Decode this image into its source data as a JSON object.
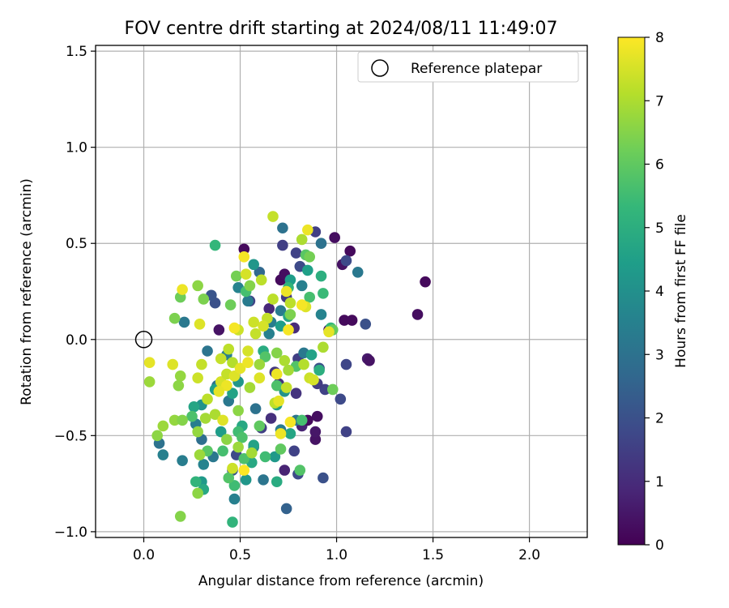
{
  "chart_data": {
    "type": "scatter",
    "title": "FOV centre drift starting at 2024/08/11 11:49:07",
    "xlabel": "Angular distance from reference (arcmin)",
    "ylabel": "Rotation from reference (arcmin)",
    "xlim": [
      -0.25,
      2.3
    ],
    "ylim": [
      -1.03,
      1.53
    ],
    "xticks": [
      0.0,
      0.5,
      1.0,
      1.5,
      2.0
    ],
    "xtick_labels": [
      "0.0",
      "0.5",
      "1.0",
      "1.5",
      "2.0"
    ],
    "yticks": [
      -1.0,
      -0.5,
      0.0,
      0.5,
      1.0,
      1.5
    ],
    "ytick_labels": [
      "−1.0",
      "−0.5",
      "0.0",
      "0.5",
      "1.0",
      "1.5"
    ],
    "grid": true,
    "legend": {
      "position": "top-right",
      "entries": [
        "Reference platepar"
      ]
    },
    "reference_point": {
      "x": 0.0,
      "y": 0.0,
      "label": "Reference platepar",
      "marker": "open-circle"
    },
    "colorbar": {
      "label": "Hours from first FF file",
      "range": [
        0,
        8
      ],
      "ticks": [
        0,
        1,
        2,
        3,
        4,
        5,
        6,
        7,
        8
      ],
      "tick_labels": [
        "0",
        "1",
        "2",
        "3",
        "4",
        "5",
        "6",
        "7",
        "8"
      ],
      "colormap": "viridis",
      "colormap_hex": [
        "#440154",
        "#482878",
        "#3e4989",
        "#31688e",
        "#26828e",
        "#1f9e89",
        "#35b779",
        "#6ece58",
        "#b5de2b",
        "#fde725"
      ]
    },
    "points": [
      {
        "x": 0.99,
        "y": 0.53,
        "h": 0.3
      },
      {
        "x": 1.07,
        "y": 0.46,
        "h": 0.2
      },
      {
        "x": 1.46,
        "y": 0.3,
        "h": 0.2
      },
      {
        "x": 1.42,
        "y": 0.13,
        "h": 0.3
      },
      {
        "x": 1.03,
        "y": 0.39,
        "h": 0.4
      },
      {
        "x": 1.04,
        "y": 0.1,
        "h": 0.2
      },
      {
        "x": 1.08,
        "y": 0.1,
        "h": 0.2
      },
      {
        "x": 0.96,
        "y": 0.05,
        "h": 0.3
      },
      {
        "x": 1.16,
        "y": -0.1,
        "h": 0.6
      },
      {
        "x": 1.17,
        "y": -0.11,
        "h": 0.4
      },
      {
        "x": 0.9,
        "y": -0.4,
        "h": 0.3
      },
      {
        "x": 0.89,
        "y": -0.52,
        "h": 0.4
      },
      {
        "x": 0.89,
        "y": -0.48,
        "h": 0.5
      },
      {
        "x": 0.82,
        "y": -0.45,
        "h": 0.8
      },
      {
        "x": 0.85,
        "y": -0.42,
        "h": 0.2
      },
      {
        "x": 0.73,
        "y": -0.68,
        "h": 0.8
      },
      {
        "x": 0.71,
        "y": 0.31,
        "h": 0.2
      },
      {
        "x": 0.73,
        "y": 0.34,
        "h": 0.3
      },
      {
        "x": 0.52,
        "y": 0.47,
        "h": 0.2
      },
      {
        "x": 0.39,
        "y": 0.05,
        "h": 0.4
      },
      {
        "x": 0.79,
        "y": 0.45,
        "h": 1.6
      },
      {
        "x": 0.72,
        "y": 0.49,
        "h": 1.5
      },
      {
        "x": 1.05,
        "y": 0.41,
        "h": 1.8
      },
      {
        "x": 1.15,
        "y": 0.08,
        "h": 2.0
      },
      {
        "x": 1.05,
        "y": -0.13,
        "h": 1.7
      },
      {
        "x": 1.05,
        "y": -0.48,
        "h": 1.6
      },
      {
        "x": 1.02,
        "y": -0.31,
        "h": 1.8
      },
      {
        "x": 0.94,
        "y": -0.26,
        "h": 1.6
      },
      {
        "x": 0.93,
        "y": -0.72,
        "h": 2.0
      },
      {
        "x": 0.8,
        "y": -0.7,
        "h": 1.8
      },
      {
        "x": 0.78,
        "y": -0.58,
        "h": 1.6
      },
      {
        "x": 0.74,
        "y": -0.88,
        "h": 2.5
      },
      {
        "x": 0.61,
        "y": -0.46,
        "h": 1.5
      },
      {
        "x": 0.46,
        "y": -0.68,
        "h": 2.2
      },
      {
        "x": 0.48,
        "y": -0.6,
        "h": 1.8
      },
      {
        "x": 0.55,
        "y": 0.2,
        "h": 1.6
      },
      {
        "x": 0.37,
        "y": 0.19,
        "h": 2.0
      },
      {
        "x": 0.35,
        "y": 0.23,
        "h": 2.1
      },
      {
        "x": 0.89,
        "y": 0.56,
        "h": 1.5
      },
      {
        "x": 0.81,
        "y": 0.38,
        "h": 1.8
      },
      {
        "x": 0.91,
        "y": -0.15,
        "h": 2.0
      },
      {
        "x": 0.9,
        "y": -0.23,
        "h": 1.4
      },
      {
        "x": 0.79,
        "y": -0.28,
        "h": 1.2
      },
      {
        "x": 0.8,
        "y": -0.1,
        "h": 1.5
      },
      {
        "x": 0.68,
        "y": -0.17,
        "h": 1.3
      },
      {
        "x": 0.66,
        "y": -0.41,
        "h": 1.1
      },
      {
        "x": 0.78,
        "y": 0.06,
        "h": 1.0
      },
      {
        "x": 0.7,
        "y": -0.23,
        "h": 1.2
      },
      {
        "x": 0.65,
        "y": 0.16,
        "h": 0.9
      },
      {
        "x": 0.74,
        "y": 0.22,
        "h": 1.4
      },
      {
        "x": 0.6,
        "y": 0.35,
        "h": 2.7
      },
      {
        "x": 0.92,
        "y": 0.5,
        "h": 3.0
      },
      {
        "x": 1.11,
        "y": 0.35,
        "h": 3.2
      },
      {
        "x": 0.72,
        "y": 0.58,
        "h": 3.0
      },
      {
        "x": 0.82,
        "y": 0.28,
        "h": 3.5
      },
      {
        "x": 0.71,
        "y": 0.15,
        "h": 3.3
      },
      {
        "x": 0.92,
        "y": 0.13,
        "h": 3.6
      },
      {
        "x": 0.66,
        "y": 0.09,
        "h": 3.4
      },
      {
        "x": 0.83,
        "y": -0.07,
        "h": 3.2
      },
      {
        "x": 0.79,
        "y": -0.42,
        "h": 3.1
      },
      {
        "x": 0.71,
        "y": -0.47,
        "h": 3.3
      },
      {
        "x": 0.58,
        "y": -0.36,
        "h": 3.0
      },
      {
        "x": 0.57,
        "y": -0.56,
        "h": 3.4
      },
      {
        "x": 0.62,
        "y": -0.73,
        "h": 3.1
      },
      {
        "x": 0.47,
        "y": -0.83,
        "h": 3.5
      },
      {
        "x": 0.36,
        "y": -0.61,
        "h": 3.2
      },
      {
        "x": 0.31,
        "y": -0.65,
        "h": 3.6
      },
      {
        "x": 0.2,
        "y": -0.63,
        "h": 3.4
      },
      {
        "x": 0.08,
        "y": -0.54,
        "h": 3.0
      },
      {
        "x": 0.1,
        "y": -0.6,
        "h": 3.5
      },
      {
        "x": 0.21,
        "y": 0.09,
        "h": 3.2
      },
      {
        "x": 0.33,
        "y": -0.06,
        "h": 3.1
      },
      {
        "x": 0.43,
        "y": -0.08,
        "h": 3.4
      },
      {
        "x": 0.49,
        "y": 0.27,
        "h": 3.6
      },
      {
        "x": 0.54,
        "y": 0.2,
        "h": 3.3
      },
      {
        "x": 0.38,
        "y": -0.24,
        "h": 3.0
      },
      {
        "x": 0.44,
        "y": -0.32,
        "h": 3.2
      },
      {
        "x": 0.3,
        "y": -0.52,
        "h": 2.9
      },
      {
        "x": 0.27,
        "y": -0.44,
        "h": 3.4
      },
      {
        "x": 0.65,
        "y": 0.03,
        "h": 3.5
      },
      {
        "x": 0.57,
        "y": 0.39,
        "h": 4.2
      },
      {
        "x": 0.85,
        "y": 0.36,
        "h": 4.5
      },
      {
        "x": 0.92,
        "y": 0.33,
        "h": 5.0
      },
      {
        "x": 0.76,
        "y": 0.31,
        "h": 4.4
      },
      {
        "x": 0.91,
        "y": -0.16,
        "h": 5.0
      },
      {
        "x": 0.87,
        "y": -0.08,
        "h": 4.6
      },
      {
        "x": 0.73,
        "y": -0.27,
        "h": 4.1
      },
      {
        "x": 0.69,
        "y": -0.34,
        "h": 4.4
      },
      {
        "x": 0.76,
        "y": -0.49,
        "h": 4.7
      },
      {
        "x": 0.68,
        "y": -0.61,
        "h": 4.3
      },
      {
        "x": 0.69,
        "y": -0.74,
        "h": 4.9
      },
      {
        "x": 0.53,
        "y": -0.73,
        "h": 4.2
      },
      {
        "x": 0.57,
        "y": -0.55,
        "h": 4.6
      },
      {
        "x": 0.51,
        "y": -0.45,
        "h": 4.8
      },
      {
        "x": 0.46,
        "y": -0.95,
        "h": 5.2
      },
      {
        "x": 0.4,
        "y": -0.48,
        "h": 4.4
      },
      {
        "x": 0.3,
        "y": -0.34,
        "h": 4.1
      },
      {
        "x": 0.26,
        "y": -0.35,
        "h": 4.7
      },
      {
        "x": 0.3,
        "y": -0.74,
        "h": 4.3
      },
      {
        "x": 0.31,
        "y": -0.78,
        "h": 4.8
      },
      {
        "x": 0.37,
        "y": -0.26,
        "h": 4.5
      },
      {
        "x": 0.49,
        "y": -0.22,
        "h": 4.2
      },
      {
        "x": 0.46,
        "y": -0.28,
        "h": 4.6
      },
      {
        "x": 0.62,
        "y": -0.06,
        "h": 4.9
      },
      {
        "x": 0.71,
        "y": 0.07,
        "h": 4.4
      },
      {
        "x": 0.75,
        "y": 0.12,
        "h": 4.7
      },
      {
        "x": 0.97,
        "y": 0.06,
        "h": 5.3
      },
      {
        "x": 0.56,
        "y": -0.64,
        "h": 4.8
      },
      {
        "x": 0.27,
        "y": -0.74,
        "h": 5.2
      },
      {
        "x": 0.47,
        "y": -0.76,
        "h": 5.5
      },
      {
        "x": 0.37,
        "y": 0.49,
        "h": 5.3
      },
      {
        "x": 0.53,
        "y": 0.25,
        "h": 5.6
      },
      {
        "x": 0.93,
        "y": 0.24,
        "h": 5.4
      },
      {
        "x": 0.75,
        "y": 0.27,
        "h": 5.2
      },
      {
        "x": 0.81,
        "y": -0.68,
        "h": 5.8
      },
      {
        "x": 0.63,
        "y": -0.61,
        "h": 5.5
      },
      {
        "x": 0.52,
        "y": -0.62,
        "h": 5.7
      },
      {
        "x": 0.41,
        "y": -0.58,
        "h": 5.6
      },
      {
        "x": 0.33,
        "y": -0.58,
        "h": 5.9
      },
      {
        "x": 0.25,
        "y": -0.4,
        "h": 5.7
      },
      {
        "x": 0.44,
        "y": -0.72,
        "h": 5.8
      },
      {
        "x": 0.49,
        "y": -0.48,
        "h": 5.5
      },
      {
        "x": 0.51,
        "y": -0.51,
        "h": 5.7
      },
      {
        "x": 0.6,
        "y": -0.45,
        "h": 6.0
      },
      {
        "x": 0.71,
        "y": -0.57,
        "h": 6.0
      },
      {
        "x": 0.82,
        "y": -0.42,
        "h": 5.6
      },
      {
        "x": 0.79,
        "y": -0.14,
        "h": 5.8
      },
      {
        "x": 0.69,
        "y": -0.24,
        "h": 5.7
      },
      {
        "x": 0.63,
        "y": -0.09,
        "h": 5.8
      },
      {
        "x": 0.86,
        "y": 0.22,
        "h": 5.6
      },
      {
        "x": 0.84,
        "y": 0.44,
        "h": 5.9
      },
      {
        "x": 0.98,
        "y": -0.26,
        "h": 6.2
      },
      {
        "x": 0.98,
        "y": 0.05,
        "h": 6.1
      },
      {
        "x": 0.86,
        "y": 0.43,
        "h": 6.3
      },
      {
        "x": 0.48,
        "y": 0.33,
        "h": 6.3
      },
      {
        "x": 0.55,
        "y": 0.28,
        "h": 6.5
      },
      {
        "x": 0.76,
        "y": 0.13,
        "h": 6.4
      },
      {
        "x": 0.45,
        "y": 0.18,
        "h": 6.2
      },
      {
        "x": 0.31,
        "y": 0.21,
        "h": 6.4
      },
      {
        "x": 0.28,
        "y": 0.28,
        "h": 6.6
      },
      {
        "x": 0.16,
        "y": 0.11,
        "h": 6.4
      },
      {
        "x": 0.19,
        "y": 0.22,
        "h": 6.2
      },
      {
        "x": 0.19,
        "y": -0.19,
        "h": 6.7
      },
      {
        "x": 0.18,
        "y": -0.24,
        "h": 6.6
      },
      {
        "x": 0.03,
        "y": -0.22,
        "h": 6.8
      },
      {
        "x": 0.07,
        "y": -0.5,
        "h": 6.6
      },
      {
        "x": 0.1,
        "y": -0.45,
        "h": 6.8
      },
      {
        "x": 0.16,
        "y": -0.42,
        "h": 6.7
      },
      {
        "x": 0.2,
        "y": -0.42,
        "h": 6.5
      },
      {
        "x": 0.19,
        "y": -0.92,
        "h": 6.5
      },
      {
        "x": 0.28,
        "y": -0.8,
        "h": 6.6
      },
      {
        "x": 0.29,
        "y": -0.6,
        "h": 6.8
      },
      {
        "x": 0.28,
        "y": -0.48,
        "h": 6.7
      },
      {
        "x": 0.32,
        "y": -0.41,
        "h": 6.9
      },
      {
        "x": 0.37,
        "y": -0.39,
        "h": 7.0
      },
      {
        "x": 0.43,
        "y": -0.52,
        "h": 6.6
      },
      {
        "x": 0.49,
        "y": -0.56,
        "h": 6.8
      },
      {
        "x": 0.56,
        "y": -0.59,
        "h": 6.9
      },
      {
        "x": 0.49,
        "y": -0.37,
        "h": 6.6
      },
      {
        "x": 0.55,
        "y": -0.25,
        "h": 6.9
      },
      {
        "x": 0.6,
        "y": -0.13,
        "h": 6.8
      },
      {
        "x": 0.69,
        "y": -0.07,
        "h": 6.5
      },
      {
        "x": 0.73,
        "y": -0.11,
        "h": 7.0
      },
      {
        "x": 0.75,
        "y": -0.16,
        "h": 6.9
      },
      {
        "x": 0.68,
        "y": -0.33,
        "h": 7.2
      },
      {
        "x": 0.74,
        "y": -0.25,
        "h": 7.3
      },
      {
        "x": 0.83,
        "y": -0.13,
        "h": 7.1
      },
      {
        "x": 0.86,
        "y": -0.2,
        "h": 7.4
      },
      {
        "x": 0.93,
        "y": -0.04,
        "h": 7.0
      },
      {
        "x": 0.76,
        "y": 0.19,
        "h": 7.2
      },
      {
        "x": 0.64,
        "y": 0.11,
        "h": 7.3
      },
      {
        "x": 0.57,
        "y": 0.09,
        "h": 7.4
      },
      {
        "x": 0.82,
        "y": 0.52,
        "h": 7.0
      },
      {
        "x": 0.84,
        "y": 0.17,
        "h": 7.6
      },
      {
        "x": 0.61,
        "y": 0.31,
        "h": 7.2
      },
      {
        "x": 0.53,
        "y": 0.34,
        "h": 7.5
      },
      {
        "x": 0.49,
        "y": 0.05,
        "h": 7.4
      },
      {
        "x": 0.44,
        "y": -0.05,
        "h": 7.2
      },
      {
        "x": 0.4,
        "y": -0.1,
        "h": 7.3
      },
      {
        "x": 0.46,
        "y": -0.12,
        "h": 7.1
      },
      {
        "x": 0.3,
        "y": -0.13,
        "h": 7.3
      },
      {
        "x": 0.28,
        "y": -0.2,
        "h": 7.4
      },
      {
        "x": 0.33,
        "y": -0.31,
        "h": 7.2
      },
      {
        "x": 0.4,
        "y": -0.22,
        "h": 7.5
      },
      {
        "x": 0.43,
        "y": -0.18,
        "h": 7.3
      },
      {
        "x": 0.47,
        "y": -0.19,
        "h": 7.6
      },
      {
        "x": 0.5,
        "y": -0.15,
        "h": 7.7
      },
      {
        "x": 0.54,
        "y": -0.06,
        "h": 7.5
      },
      {
        "x": 0.58,
        "y": 0.03,
        "h": 7.3
      },
      {
        "x": 0.62,
        "y": 0.07,
        "h": 7.5
      },
      {
        "x": 0.67,
        "y": 0.21,
        "h": 7.2
      },
      {
        "x": 0.67,
        "y": 0.64,
        "h": 7.3
      },
      {
        "x": 0.2,
        "y": 0.26,
        "h": 7.8
      },
      {
        "x": 0.15,
        "y": -0.13,
        "h": 7.6
      },
      {
        "x": 0.03,
        "y": -0.12,
        "h": 7.7
      },
      {
        "x": 0.29,
        "y": 0.08,
        "h": 7.6
      },
      {
        "x": 0.52,
        "y": 0.43,
        "h": 7.9
      },
      {
        "x": 0.74,
        "y": 0.25,
        "h": 7.8
      },
      {
        "x": 0.82,
        "y": 0.18,
        "h": 7.9
      },
      {
        "x": 0.85,
        "y": 0.57,
        "h": 7.8
      },
      {
        "x": 0.71,
        "y": -0.49,
        "h": 7.8
      },
      {
        "x": 0.7,
        "y": -0.32,
        "h": 7.7
      },
      {
        "x": 0.69,
        "y": -0.18,
        "h": 7.8
      },
      {
        "x": 0.6,
        "y": -0.2,
        "h": 7.6
      },
      {
        "x": 0.47,
        "y": 0.06,
        "h": 7.9
      },
      {
        "x": 0.43,
        "y": -0.24,
        "h": 7.8
      },
      {
        "x": 0.39,
        "y": -0.27,
        "h": 7.7
      },
      {
        "x": 0.41,
        "y": -0.42,
        "h": 7.6
      },
      {
        "x": 0.52,
        "y": -0.68,
        "h": 8.0
      },
      {
        "x": 0.46,
        "y": -0.67,
        "h": 7.4
      },
      {
        "x": 0.96,
        "y": 0.04,
        "h": 7.7
      },
      {
        "x": 0.75,
        "y": 0.05,
        "h": 7.9
      },
      {
        "x": 0.54,
        "y": -0.12,
        "h": 7.8
      },
      {
        "x": 0.76,
        "y": -0.43,
        "h": 7.9
      },
      {
        "x": 0.88,
        "y": -0.21,
        "h": 7.5
      }
    ]
  }
}
